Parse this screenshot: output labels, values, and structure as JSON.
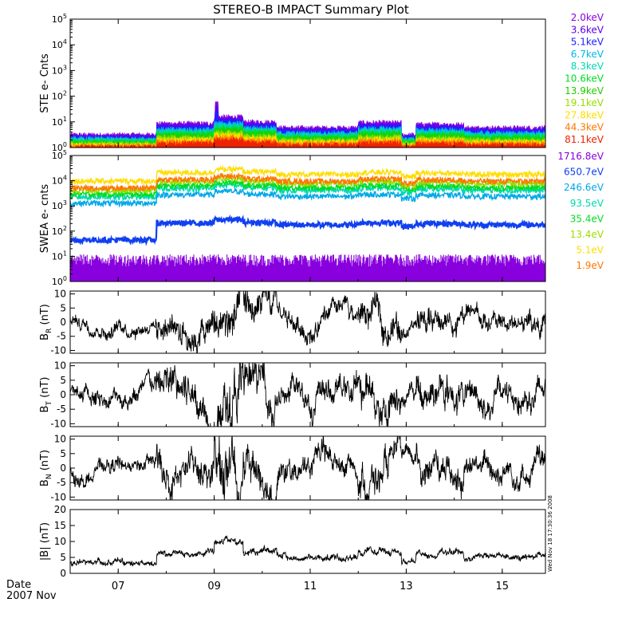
{
  "title": "STEREO-B IMPACT Summary Plot",
  "footer": {
    "date_label": "Date",
    "period_label": "2007 Nov"
  },
  "timestamp": "Wed Nov 18 17:30:36 2008",
  "colors": {
    "purple": "#8800dd",
    "violet": "#5a00ee",
    "blue": "#2020ff",
    "blue2": "#1040f0",
    "cyan": "#00b8e8",
    "teal": "#00d8b0",
    "green": "#00dd22",
    "green2": "#22cc00",
    "yellowgreen": "#99dd00",
    "yellow": "#ffdd00",
    "orange": "#ff7700",
    "red": "#ee2200",
    "trace": "#000000"
  },
  "chart_data": [
    {
      "type": "line",
      "ylabel": "STE e- Cnts",
      "ylog": true,
      "ylim": [
        1,
        100000
      ],
      "yticks": [
        "10^0",
        "10^1",
        "10^2",
        "10^3",
        "10^4",
        "10^5"
      ],
      "legend_position": "right",
      "series": [
        {
          "name": "2.0keV",
          "color": "#8800dd",
          "base": 3.0
        },
        {
          "name": "3.6keV",
          "color": "#5a00ee",
          "base": 2.7
        },
        {
          "name": "5.1keV",
          "color": "#2020ff",
          "base": 2.4
        },
        {
          "name": "6.7keV",
          "color": "#00b8e8",
          "base": 2.1
        },
        {
          "name": "8.3keV",
          "color": "#00d8b0",
          "base": 1.9
        },
        {
          "name": "10.6keV",
          "color": "#00dd22",
          "base": 1.7
        },
        {
          "name": "13.9keV",
          "color": "#22cc00",
          "base": 1.5
        },
        {
          "name": "19.1keV",
          "color": "#99dd00",
          "base": 1.35
        },
        {
          "name": "27.8keV",
          "color": "#ffdd00",
          "base": 1.2
        },
        {
          "name": "44.3keV",
          "color": "#ff7700",
          "base": 1.1
        },
        {
          "name": "81.1keV",
          "color": "#ee2200",
          "base": 1.02
        }
      ],
      "spike_peak": 60
    },
    {
      "type": "line",
      "ylabel": "SWEA e- cnts",
      "ylog": true,
      "ylim": [
        1,
        100000
      ],
      "yticks": [
        "10^0",
        "10^1",
        "10^2",
        "10^3",
        "10^4",
        "10^5"
      ],
      "legend_position": "right",
      "series": [
        {
          "name": "1716.8eV",
          "color": "#8800dd",
          "base": 4
        },
        {
          "name": "650.7eV",
          "color": "#1040f0",
          "base": 150
        },
        {
          "name": "246.6eV",
          "color": "#00a8e8",
          "base": 2000
        },
        {
          "name": "93.5eV",
          "color": "#00d8b0",
          "base": 3500
        },
        {
          "name": "35.4eV",
          "color": "#00dd22",
          "base": 4500
        },
        {
          "name": "13.4eV",
          "color": "#99dd00",
          "base": 6500
        },
        {
          "name": "5.1eV",
          "color": "#ffdd00",
          "base": 15000
        },
        {
          "name": "1.9eV",
          "color": "#ff7700",
          "base": 8000
        }
      ]
    },
    {
      "type": "line",
      "ylabel": "B_R (nT)",
      "ylabel_main": "B",
      "ylabel_sub": "R",
      "ylabel_unit": " (nT)",
      "ylim": [
        -11,
        11
      ],
      "yticks": [
        "-10",
        "-5",
        "0",
        "5",
        "10"
      ],
      "ytick_values": [
        -10,
        -5,
        0,
        5,
        10
      ],
      "amplitude": 2.5
    },
    {
      "type": "line",
      "ylabel": "B_T (nT)",
      "ylabel_main": "B",
      "ylabel_sub": "T",
      "ylabel_unit": " (nT)",
      "ylim": [
        -11,
        11
      ],
      "yticks": [
        "-10",
        "-5",
        "0",
        "5",
        "10"
      ],
      "ytick_values": [
        -10,
        -5,
        0,
        5,
        10
      ],
      "amplitude": 3.0
    },
    {
      "type": "line",
      "ylabel": "B_N (nT)",
      "ylabel_main": "B",
      "ylabel_sub": "N",
      "ylabel_unit": " (nT)",
      "ylim": [
        -11,
        11
      ],
      "yticks": [
        "-10",
        "-5",
        "0",
        "5",
        "10"
      ],
      "ytick_values": [
        -10,
        -5,
        0,
        5,
        10
      ],
      "amplitude": 2.8
    },
    {
      "type": "line",
      "ylabel": "|B| (nT)",
      "ylabel_main": "|B|",
      "ylabel_sub": "",
      "ylabel_unit": " (nT)",
      "ylim": [
        0,
        20
      ],
      "yticks": [
        "0",
        "5",
        "10",
        "15",
        "20"
      ],
      "ytick_values": [
        0,
        5,
        10,
        15,
        20
      ]
    }
  ],
  "x_axis": {
    "start_day": 6.0,
    "end_day": 15.9,
    "tick_labels": [
      "07",
      "09",
      "11",
      "13",
      "15"
    ],
    "tick_days": [
      7,
      9,
      11,
      13,
      15
    ]
  }
}
